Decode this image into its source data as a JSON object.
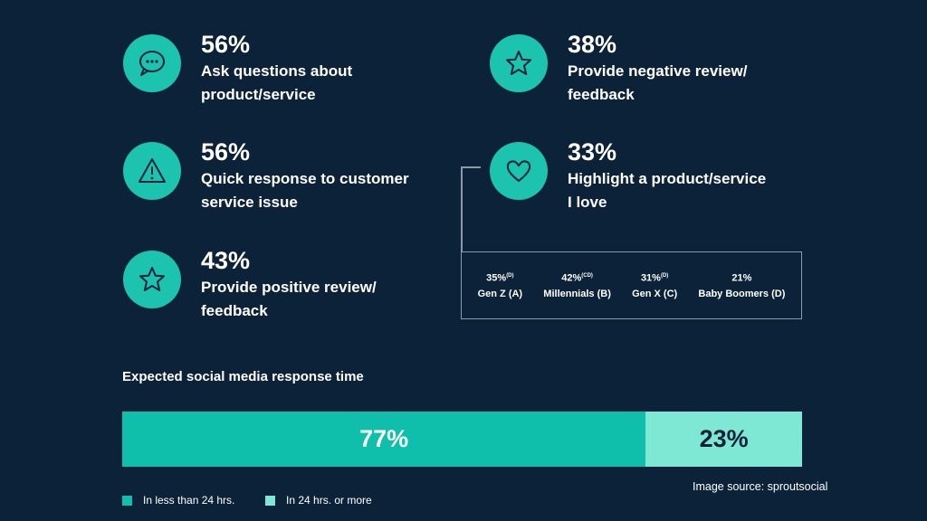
{
  "stats": [
    {
      "pct": "56%",
      "line1": "Ask questions about",
      "line2": "product/service",
      "icon": "chat-bubble-icon"
    },
    {
      "pct": "56%",
      "line1": "Quick response to customer",
      "line2": "service issue",
      "icon": "warning-icon"
    },
    {
      "pct": "43%",
      "line1": "Provide positive review/",
      "line2": "feedback",
      "icon": "star-icon"
    },
    {
      "pct": "38%",
      "line1": "Provide negative review/",
      "line2": "feedback",
      "icon": "star-icon"
    },
    {
      "pct": "33%",
      "line1": "Highlight a product/service",
      "line2": "I love",
      "icon": "heart-icon"
    }
  ],
  "generations": [
    {
      "pct": "35%",
      "sup": "(D)",
      "label": "Gen Z (A)"
    },
    {
      "pct": "42%",
      "sup": "(CD)",
      "label": "Millennials (B)"
    },
    {
      "pct": "31%",
      "sup": "(D)",
      "label": "Gen X (C)"
    },
    {
      "pct": "21%",
      "sup": "",
      "label": "Baby Boomers (D)"
    }
  ],
  "colors": {
    "background": "#0c2239",
    "accent": "#1cc4b0",
    "bar_primary": "#0fbfac",
    "bar_secondary": "#7fe8d5"
  },
  "chart_data": {
    "type": "bar",
    "orientation": "horizontal-stacked",
    "title": "Expected social media response time",
    "series": [
      {
        "name": "In less than 24 hrs.",
        "value": 77,
        "label": "77%",
        "color": "#0fbfac"
      },
      {
        "name": "In 24 hrs. or more",
        "value": 23,
        "label": "23%",
        "color": "#7fe8d5"
      }
    ],
    "xlim": [
      0,
      100
    ],
    "legend_position": "bottom-left"
  },
  "source": "Image source: sproutsocial"
}
